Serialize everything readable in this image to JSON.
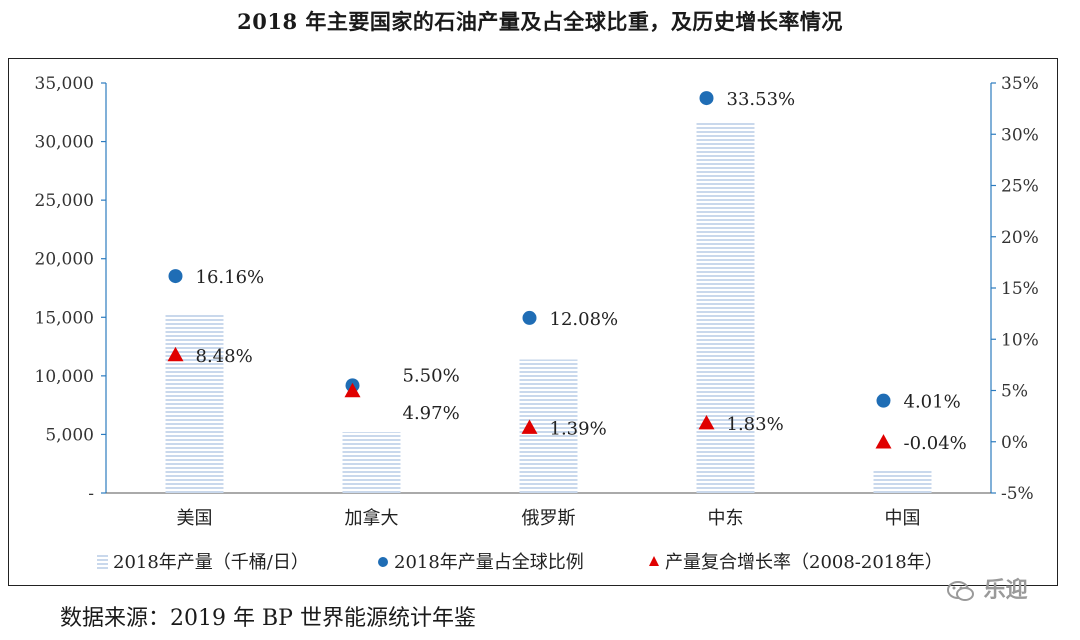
{
  "title": "2018 年主要国家的石油产量及占全球比重，及历史增长率情况",
  "source_note": "数据来源：2019 年 BP 世界能源统计年鉴",
  "watermark": "乐迎",
  "chart_data": {
    "type": "bar",
    "categories": [
      "美国",
      "加拿大",
      "俄罗斯",
      "中东",
      "中国"
    ],
    "series": [
      {
        "name": "2018年产量（千桶/日）",
        "kind": "bar",
        "axis": "left",
        "values": [
          15300,
          5200,
          11400,
          31700,
          1900
        ],
        "color": "#c9d8ec"
      },
      {
        "name": "2018年产量占全球比例",
        "kind": "dot",
        "axis": "right",
        "values": [
          16.16,
          5.5,
          12.08,
          33.53,
          4.01
        ],
        "labels": [
          "16.16%",
          "5.50%",
          "12.08%",
          "33.53%",
          "4.01%"
        ],
        "color": "#1f6db5"
      },
      {
        "name": "产量复合增长率（2008-2018年）",
        "kind": "triangle",
        "axis": "right",
        "values": [
          8.48,
          4.97,
          1.39,
          1.83,
          -0.04
        ],
        "labels": [
          "8.48%",
          "4.97%",
          "1.39%",
          "1.83%",
          "-0.04%"
        ],
        "color": "#e00000"
      }
    ],
    "y_left": {
      "range": [
        0,
        35000
      ],
      "ticks": [
        {
          "v": 0,
          "label": "-"
        },
        {
          "v": 5000,
          "label": "5,000"
        },
        {
          "v": 10000,
          "label": "10,000"
        },
        {
          "v": 15000,
          "label": "15,000"
        },
        {
          "v": 20000,
          "label": "20,000"
        },
        {
          "v": 25000,
          "label": "25,000"
        },
        {
          "v": 30000,
          "label": "30,000"
        },
        {
          "v": 35000,
          "label": "35,000"
        }
      ]
    },
    "y_right": {
      "range": [
        -5,
        35
      ],
      "ticks": [
        {
          "v": -5,
          "label": "-5%"
        },
        {
          "v": 0,
          "label": "0%"
        },
        {
          "v": 5,
          "label": "5%"
        },
        {
          "v": 10,
          "label": "10%"
        },
        {
          "v": 15,
          "label": "15%"
        },
        {
          "v": 20,
          "label": "20%"
        },
        {
          "v": 25,
          "label": "25%"
        },
        {
          "v": 30,
          "label": "30%"
        },
        {
          "v": 35,
          "label": "35%"
        }
      ]
    },
    "grid": false,
    "legend_position": "bottom"
  }
}
